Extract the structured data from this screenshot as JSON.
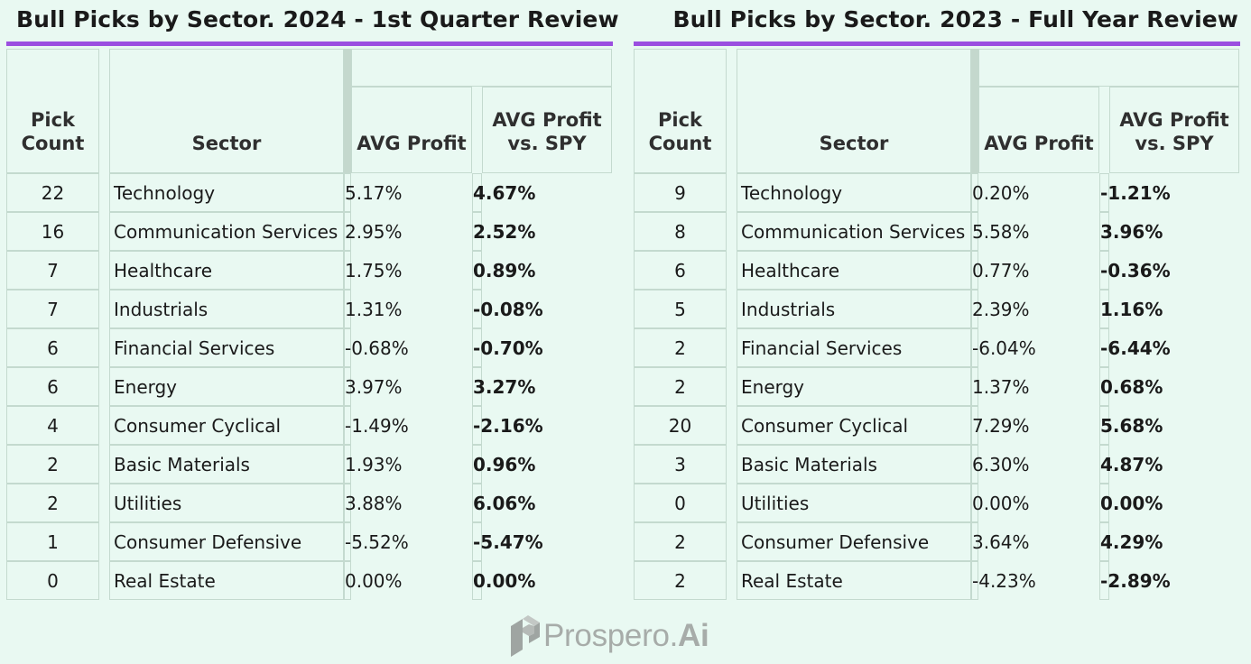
{
  "tables": [
    {
      "title": "Bull Picks by Sector.  2024 - 1st Quarter Review",
      "headers": {
        "pick_count": "Pick Count",
        "sector": "Sector",
        "avg_profit": "AVG Profit",
        "avg_vs_spy": "AVG Profit vs. SPY"
      },
      "rows": [
        {
          "count": "22",
          "sector": "Technology",
          "avg": "5.17%",
          "vs": "4.67%"
        },
        {
          "count": "16",
          "sector": "Communication Services",
          "avg": "2.95%",
          "vs": "2.52%"
        },
        {
          "count": "7",
          "sector": "Healthcare",
          "avg": "1.75%",
          "vs": "0.89%"
        },
        {
          "count": "7",
          "sector": "Industrials",
          "avg": "1.31%",
          "vs": "-0.08%"
        },
        {
          "count": "6",
          "sector": "Financial Services",
          "avg": "-0.68%",
          "vs": "-0.70%"
        },
        {
          "count": "6",
          "sector": "Energy",
          "avg": "3.97%",
          "vs": "3.27%"
        },
        {
          "count": "4",
          "sector": "Consumer Cyclical",
          "avg": "-1.49%",
          "vs": "-2.16%"
        },
        {
          "count": "2",
          "sector": "Basic Materials",
          "avg": "1.93%",
          "vs": "0.96%"
        },
        {
          "count": "2",
          "sector": "Utilities",
          "avg": "3.88%",
          "vs": "6.06%"
        },
        {
          "count": "1",
          "sector": "Consumer Defensive",
          "avg": "-5.52%",
          "vs": "-5.47%"
        },
        {
          "count": "0",
          "sector": "Real Estate",
          "avg": "0.00%",
          "vs": "0.00%"
        }
      ]
    },
    {
      "title": "Bull Picks by Sector.  2023 - Full Year Review",
      "headers": {
        "pick_count": "Pick Count",
        "sector": "Sector",
        "avg_profit": "AVG Profit",
        "avg_vs_spy": "AVG Profit vs. SPY"
      },
      "rows": [
        {
          "count": "9",
          "sector": "Technology",
          "avg": "0.20%",
          "vs": "-1.21%"
        },
        {
          "count": "8",
          "sector": "Communication Services",
          "avg": "5.58%",
          "vs": "3.96%"
        },
        {
          "count": "6",
          "sector": "Healthcare",
          "avg": "0.77%",
          "vs": "-0.36%"
        },
        {
          "count": "5",
          "sector": "Industrials",
          "avg": "2.39%",
          "vs": "1.16%"
        },
        {
          "count": "2",
          "sector": "Financial Services",
          "avg": "-6.04%",
          "vs": "-6.44%"
        },
        {
          "count": "2",
          "sector": "Energy",
          "avg": "1.37%",
          "vs": "0.68%"
        },
        {
          "count": "20",
          "sector": "Consumer Cyclical",
          "avg": "7.29%",
          "vs": "5.68%"
        },
        {
          "count": "3",
          "sector": "Basic Materials",
          "avg": "6.30%",
          "vs": "4.87%"
        },
        {
          "count": "0",
          "sector": "Utilities",
          "avg": "0.00%",
          "vs": "0.00%"
        },
        {
          "count": "2",
          "sector": "Consumer Defensive",
          "avg": "3.64%",
          "vs": "4.29%"
        },
        {
          "count": "2",
          "sector": "Real Estate",
          "avg": "-4.23%",
          "vs": "-2.89%"
        }
      ]
    }
  ],
  "logo": {
    "name": "Prospero.",
    "suffix": "Ai",
    "icon": "prospero-logo-icon"
  },
  "colors": {
    "background": "#e9f9f2",
    "accent": "#9b4fe0",
    "grid": "#c4dacf",
    "logo": "#a7aca9"
  }
}
